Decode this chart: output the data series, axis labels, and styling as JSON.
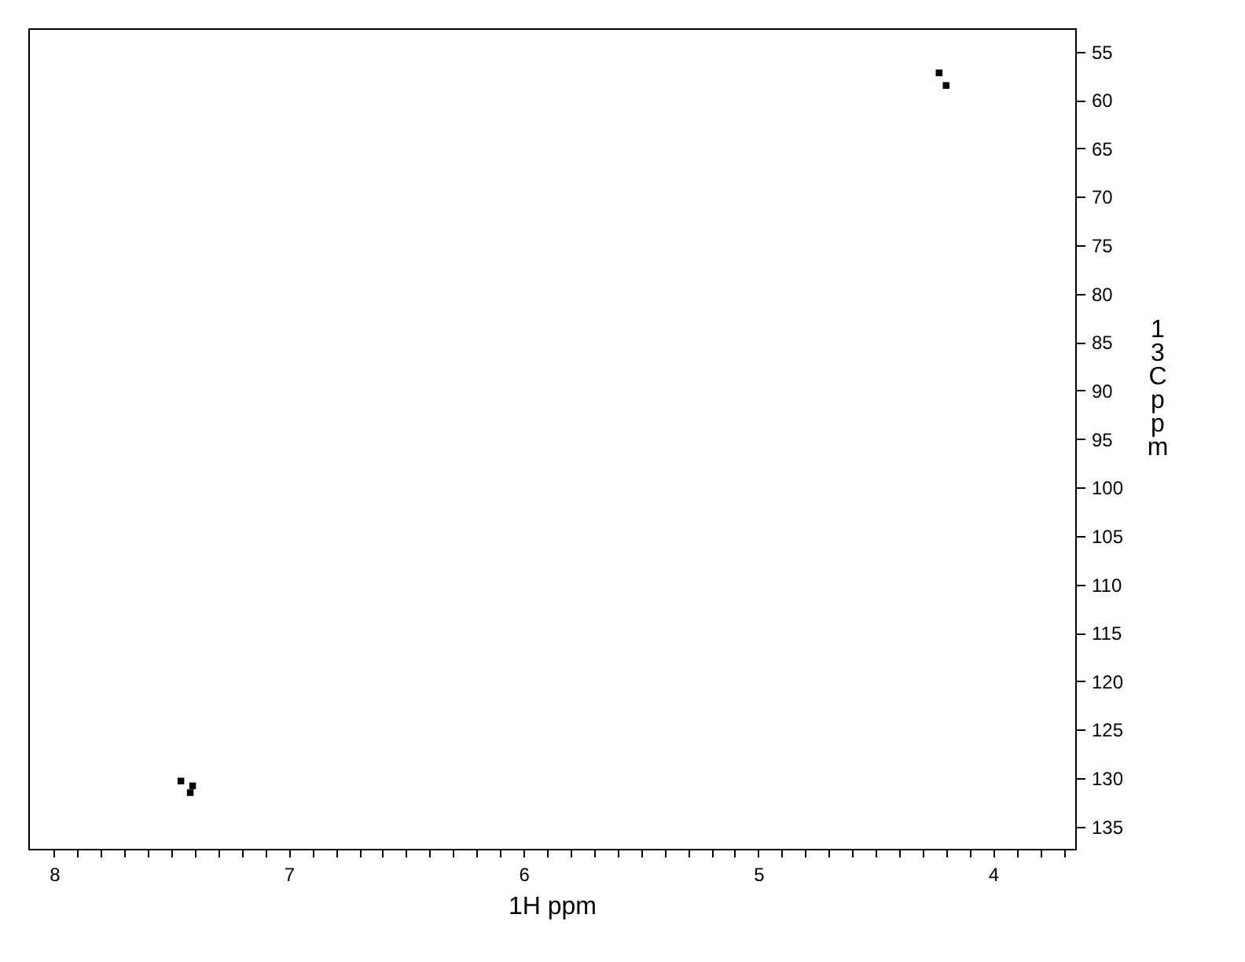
{
  "chart_data": {
    "type": "scatter",
    "xlabel": "1H ppm",
    "ylabel": "13C ppm",
    "series": [
      {
        "color": "#000000",
        "x": [
          4.23,
          4.2,
          7.46,
          7.41,
          7.42
        ],
        "values": [
          57.2,
          58.5,
          130.3,
          130.8,
          131.5
        ]
      }
    ],
    "xlim": [
      8.11,
      3.65
    ],
    "ylim": [
      137.3,
      52.6
    ],
    "xticks": [
      8,
      {
        "value": 7.9,
        "label": null
      },
      {
        "value": 7.8,
        "label": null
      },
      {
        "value": 7.7,
        "label": null
      },
      {
        "value": 7.6,
        "label": null
      },
      {
        "value": 7.5,
        "label": null
      },
      {
        "value": 7.4,
        "label": null
      },
      {
        "value": 7.3,
        "label": null
      },
      {
        "value": 7.2,
        "label": null
      },
      {
        "value": 7.1,
        "label": null
      },
      7,
      {
        "value": 6.9,
        "label": null
      },
      {
        "value": 6.8,
        "label": null
      },
      {
        "value": 6.7,
        "label": null
      },
      {
        "value": 6.6,
        "label": null
      },
      {
        "value": 6.5,
        "label": null
      },
      {
        "value": 6.4,
        "label": null
      },
      {
        "value": 6.3,
        "label": null
      },
      {
        "value": 6.2,
        "label": null
      },
      {
        "value": 6.1,
        "label": null
      },
      6,
      {
        "value": 5.9,
        "label": null
      },
      {
        "value": 5.8,
        "label": null
      },
      {
        "value": 5.7,
        "label": null
      },
      {
        "value": 5.6,
        "label": null
      },
      {
        "value": 5.5,
        "label": null
      },
      {
        "value": 5.4,
        "label": null
      },
      {
        "value": 5.3,
        "label": null
      },
      {
        "value": 5.2,
        "label": null
      },
      {
        "value": 5.1,
        "label": null
      },
      5,
      {
        "value": 4.9,
        "label": null
      },
      {
        "value": 4.8,
        "label": null
      },
      {
        "value": 4.7,
        "label": null
      },
      {
        "value": 4.6,
        "label": null
      },
      {
        "value": 4.5,
        "label": null
      },
      {
        "value": 4.4,
        "label": null
      },
      {
        "value": 4.3,
        "label": null
      },
      {
        "value": 4.2,
        "label": null
      },
      {
        "value": 4.1,
        "label": null
      },
      4,
      {
        "value": 3.9,
        "label": null
      },
      {
        "value": 3.8,
        "label": null
      },
      {
        "value": 3.7,
        "label": null
      }
    ],
    "yticks": [
      55,
      60,
      65,
      70,
      75,
      80,
      85,
      90,
      95,
      100,
      105,
      110,
      115,
      120,
      125,
      130,
      135
    ],
    "grid": false,
    "marker": "square"
  }
}
